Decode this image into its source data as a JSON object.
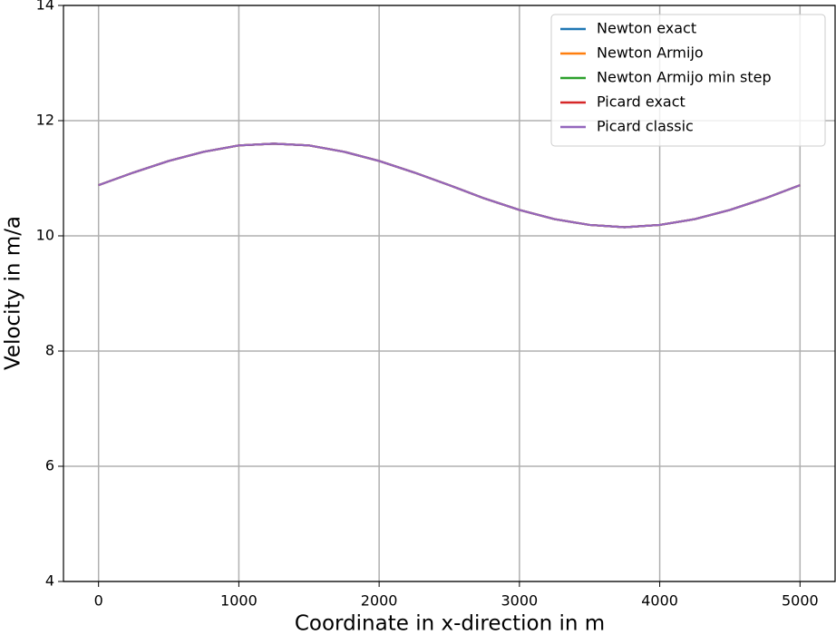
{
  "chart_data": {
    "type": "line",
    "xlabel": "Coordinate in x-direction in m",
    "ylabel": "Velocity in m/a",
    "x": [
      0,
      250,
      500,
      750,
      1000,
      1250,
      1500,
      1750,
      2000,
      2250,
      2500,
      2750,
      3000,
      3250,
      3500,
      3750,
      4000,
      4250,
      4500,
      4750,
      5000
    ],
    "series": [
      {
        "name": "Newton exact",
        "color": "#1f77b4",
        "values": [
          10.88,
          11.1,
          11.3,
          11.46,
          11.57,
          11.6,
          11.57,
          11.46,
          11.3,
          11.1,
          10.88,
          10.65,
          10.45,
          10.29,
          10.19,
          10.15,
          10.19,
          10.29,
          10.45,
          10.65,
          10.88
        ]
      },
      {
        "name": "Newton Armijo",
        "color": "#ff7f0e",
        "values": [
          10.88,
          11.1,
          11.3,
          11.46,
          11.57,
          11.6,
          11.57,
          11.46,
          11.3,
          11.1,
          10.88,
          10.65,
          10.45,
          10.29,
          10.19,
          10.15,
          10.19,
          10.29,
          10.45,
          10.65,
          10.88
        ]
      },
      {
        "name": "Newton Armijo min step",
        "color": "#2ca02c",
        "values": [
          10.88,
          11.1,
          11.3,
          11.46,
          11.57,
          11.6,
          11.57,
          11.46,
          11.3,
          11.1,
          10.88,
          10.65,
          10.45,
          10.29,
          10.19,
          10.15,
          10.19,
          10.29,
          10.45,
          10.65,
          10.88
        ]
      },
      {
        "name": "Picard exact",
        "color": "#d62728",
        "values": [
          10.88,
          11.1,
          11.3,
          11.46,
          11.57,
          11.6,
          11.57,
          11.46,
          11.3,
          11.1,
          10.88,
          10.65,
          10.45,
          10.29,
          10.19,
          10.15,
          10.19,
          10.29,
          10.45,
          10.65,
          10.88
        ]
      },
      {
        "name": "Picard classic",
        "color": "#9467bd",
        "values": [
          10.88,
          11.1,
          11.3,
          11.46,
          11.57,
          11.6,
          11.57,
          11.46,
          11.3,
          11.1,
          10.88,
          10.65,
          10.45,
          10.29,
          10.19,
          10.15,
          10.19,
          10.29,
          10.45,
          10.65,
          10.88
        ]
      }
    ],
    "xlim": [
      -250,
      5250
    ],
    "ylim": [
      4,
      14
    ],
    "xticks": [
      0,
      1000,
      2000,
      3000,
      4000,
      5000
    ],
    "yticks": [
      4,
      6,
      8,
      10,
      12,
      14
    ],
    "grid": true,
    "legend": "upper right"
  }
}
